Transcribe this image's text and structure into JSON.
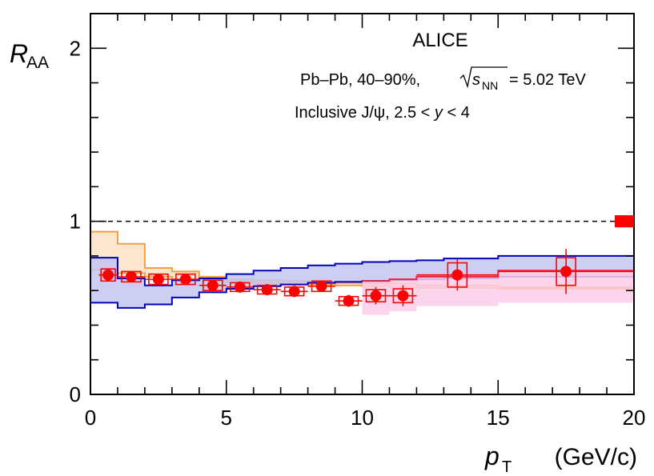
{
  "chart_data": {
    "type": "scatter",
    "xlabel": {
      "main": "p",
      "sub": "T",
      "units": "(GeV/c)"
    },
    "ylabel": {
      "main": "R",
      "sub": "AA"
    },
    "xlim": [
      0,
      20
    ],
    "ylim": [
      0,
      2.2
    ],
    "x_ticks": [
      0,
      5,
      10,
      15,
      20
    ],
    "y_ticks": [
      0,
      1,
      2
    ],
    "x_tick_labels": [
      "0",
      "5",
      "10",
      "15",
      "20"
    ],
    "y_tick_labels": [
      "0",
      "1",
      "2"
    ],
    "reference_line": 1,
    "annotations": {
      "experiment": "ALICE",
      "system": "Pb–Pb, 40–90%,",
      "energy_symbol": "s",
      "energy_sub": "NN",
      "energy_value": "= 5.02 TeV",
      "selection_prefix": "Inclusive J/ψ, 2.5 < ",
      "selection_var": "y",
      "selection_suffix": " < 4"
    },
    "global_uncertainty": {
      "center": 1.0,
      "half_height": 0.035
    },
    "data": {
      "name": "ALICE data",
      "color": "#ff0000",
      "points": [
        {
          "x": 0.65,
          "xerr": 0.35,
          "y": 0.69,
          "stat": 0.03,
          "sys": 0.035
        },
        {
          "x": 1.5,
          "xerr": 0.5,
          "y": 0.68,
          "stat": 0.025,
          "sys": 0.03
        },
        {
          "x": 2.5,
          "xerr": 0.5,
          "y": 0.665,
          "stat": 0.02,
          "sys": 0.03
        },
        {
          "x": 3.5,
          "xerr": 0.5,
          "y": 0.665,
          "stat": 0.02,
          "sys": 0.03
        },
        {
          "x": 4.5,
          "xerr": 0.5,
          "y": 0.63,
          "stat": 0.02,
          "sys": 0.03
        },
        {
          "x": 5.5,
          "xerr": 0.5,
          "y": 0.62,
          "stat": 0.02,
          "sys": 0.025
        },
        {
          "x": 6.5,
          "xerr": 0.5,
          "y": 0.605,
          "stat": 0.02,
          "sys": 0.025
        },
        {
          "x": 7.5,
          "xerr": 0.5,
          "y": 0.595,
          "stat": 0.025,
          "sys": 0.025
        },
        {
          "x": 8.5,
          "xerr": 0.5,
          "y": 0.625,
          "stat": 0.03,
          "sys": 0.03
        },
        {
          "x": 9.5,
          "xerr": 0.5,
          "y": 0.54,
          "stat": 0.035,
          "sys": 0.025
        },
        {
          "x": 10.5,
          "xerr": 0.5,
          "y": 0.57,
          "stat": 0.05,
          "sys": 0.035
        },
        {
          "x": 11.5,
          "xerr": 0.5,
          "y": 0.57,
          "stat": 0.06,
          "sys": 0.04
        },
        {
          "x": 13.5,
          "xerr": 1.5,
          "y": 0.69,
          "stat": 0.09,
          "sys": 0.07
        },
        {
          "x": 17.5,
          "xerr": 2.5,
          "y": 0.71,
          "stat": 0.13,
          "sys": 0.08
        }
      ]
    },
    "models": [
      {
        "name": "model-orange",
        "fill": "#fde2c8",
        "stroke": "#f0a040",
        "bin_edges": [
          0,
          1,
          2,
          3,
          4,
          5,
          6,
          7,
          8,
          9,
          10,
          11,
          12,
          15,
          20
        ],
        "upper": [
          0.94,
          0.87,
          0.73,
          0.71,
          0.68,
          0.665,
          0.66,
          0.655,
          0.65,
          0.645,
          0.64,
          0.64,
          0.63,
          0.62
        ],
        "lower": [
          0.72,
          0.7,
          0.68,
          0.66,
          0.655,
          0.65,
          0.645,
          0.64,
          0.635,
          0.63,
          0.625,
          0.62,
          0.615,
          0.61
        ]
      },
      {
        "name": "model-blue",
        "fill": "#c3c5f0",
        "stroke": "#0000bb",
        "bin_edges": [
          0,
          1,
          2,
          3,
          4,
          5,
          6,
          7,
          8,
          9,
          10,
          11,
          12,
          13,
          15,
          20
        ],
        "upper": [
          0.79,
          0.67,
          0.63,
          0.66,
          0.67,
          0.695,
          0.715,
          0.73,
          0.745,
          0.755,
          0.765,
          0.77,
          0.775,
          0.785,
          0.8
        ],
        "lower": [
          0.53,
          0.5,
          0.52,
          0.56,
          0.59,
          0.61,
          0.625,
          0.635,
          0.645,
          0.65,
          0.655,
          0.66,
          0.665,
          0.67,
          0.68
        ]
      },
      {
        "name": "model-pink",
        "fill": "#fbcde8",
        "stroke": "#ee2244",
        "bin_edges": [
          10,
          11,
          12,
          15,
          20
        ],
        "upper": [
          0.655,
          0.665,
          0.68,
          0.715
        ],
        "lower": [
          0.46,
          0.48,
          0.51,
          0.53
        ]
      }
    ]
  }
}
